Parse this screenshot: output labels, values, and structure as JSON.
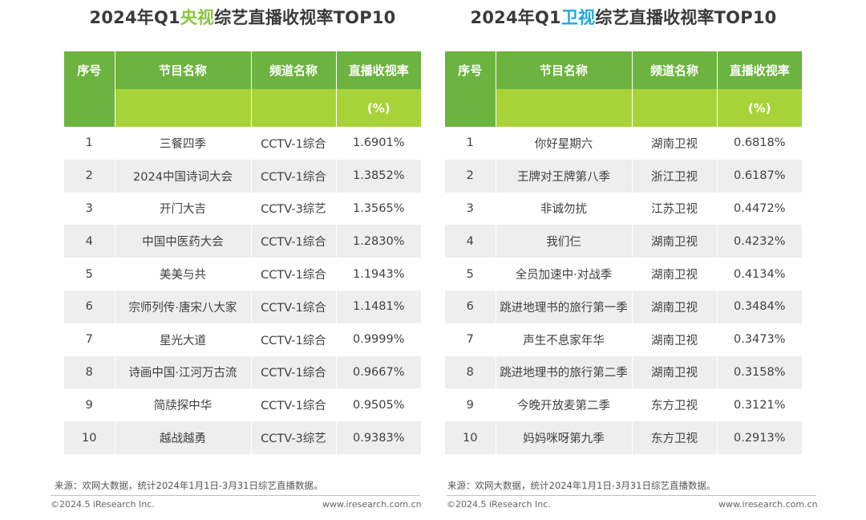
{
  "left": {
    "title_prefix": "2024年Q1",
    "title_highlight": "央视",
    "title_suffix": "综艺直播收视率TOP10",
    "headers": {
      "rank": "序号",
      "program": "节目名称",
      "channel": "频道名称",
      "rating": "直播收视率",
      "rating_unit": "(%)"
    },
    "rows": [
      {
        "rank": "1",
        "program": "三餐四季",
        "channel": "CCTV-1综合",
        "rating": "1.6901%"
      },
      {
        "rank": "2",
        "program": "2024中国诗词大会",
        "channel": "CCTV-1综合",
        "rating": "1.3852%"
      },
      {
        "rank": "3",
        "program": "开门大吉",
        "channel": "CCTV-3综艺",
        "rating": "1.3565%"
      },
      {
        "rank": "4",
        "program": "中国中医药大会",
        "channel": "CCTV-1综合",
        "rating": "1.2830%"
      },
      {
        "rank": "5",
        "program": "美美与共",
        "channel": "CCTV-1综合",
        "rating": "1.1943%"
      },
      {
        "rank": "6",
        "program": "宗师列传·唐宋八大家",
        "channel": "CCTV-1综合",
        "rating": "1.1481%"
      },
      {
        "rank": "7",
        "program": "星光大道",
        "channel": "CCTV-1综合",
        "rating": "0.9999%"
      },
      {
        "rank": "8",
        "program": "诗画中国·江河万古流",
        "channel": "CCTV-1综合",
        "rating": "0.9667%"
      },
      {
        "rank": "9",
        "program": "简牍探中华",
        "channel": "CCTV-1综合",
        "rating": "0.9505%"
      },
      {
        "rank": "10",
        "program": "越战越勇",
        "channel": "CCTV-3综艺",
        "rating": "0.9383%"
      }
    ],
    "source": "来源：欢网大数据，统计2024年1月1日-3月31日综艺直播数据。"
  },
  "right": {
    "title_prefix": "2024年Q1",
    "title_highlight": "卫视",
    "title_suffix": "综艺直播收视率TOP10",
    "headers": {
      "rank": "序号",
      "program": "节目名称",
      "channel": "频道名称",
      "rating": "直播收视率",
      "rating_unit": "(%)"
    },
    "rows": [
      {
        "rank": "1",
        "program": "你好星期六",
        "channel": "湖南卫视",
        "rating": "0.6818%"
      },
      {
        "rank": "2",
        "program": "王牌对王牌第八季",
        "channel": "浙江卫视",
        "rating": "0.6187%"
      },
      {
        "rank": "3",
        "program": "非诚勿扰",
        "channel": "江苏卫视",
        "rating": "0.4472%"
      },
      {
        "rank": "4",
        "program": "我们仨",
        "channel": "湖南卫视",
        "rating": "0.4232%"
      },
      {
        "rank": "5",
        "program": "全员加速中·对战季",
        "channel": "湖南卫视",
        "rating": "0.4134%"
      },
      {
        "rank": "6",
        "program": "跳进地理书的旅行第一季",
        "channel": "湖南卫视",
        "rating": "0.3484%"
      },
      {
        "rank": "7",
        "program": "声生不息家年华",
        "channel": "湖南卫视",
        "rating": "0.3473%"
      },
      {
        "rank": "8",
        "program": "跳进地理书的旅行第二季",
        "channel": "湖南卫视",
        "rating": "0.3158%"
      },
      {
        "rank": "9",
        "program": "今晚开放麦第二季",
        "channel": "东方卫视",
        "rating": "0.3121%"
      },
      {
        "rank": "10",
        "program": "妈妈咪呀第九季",
        "channel": "东方卫视",
        "rating": "0.2913%"
      }
    ],
    "source": "来源：欢网大数据，统计2024年1月1日-3月31日综艺直播数据。"
  },
  "footer": {
    "copyright": "©2024.5 iResearch Inc.",
    "website": "www.iresearch.com.cn"
  },
  "colors": {
    "header_dark_green": "#6cb33f",
    "header_light_green": "#a8d338",
    "highlight_green": "#8cc63f",
    "highlight_blue": "#1fa9e1",
    "row_stripe": "#eeeeee"
  }
}
